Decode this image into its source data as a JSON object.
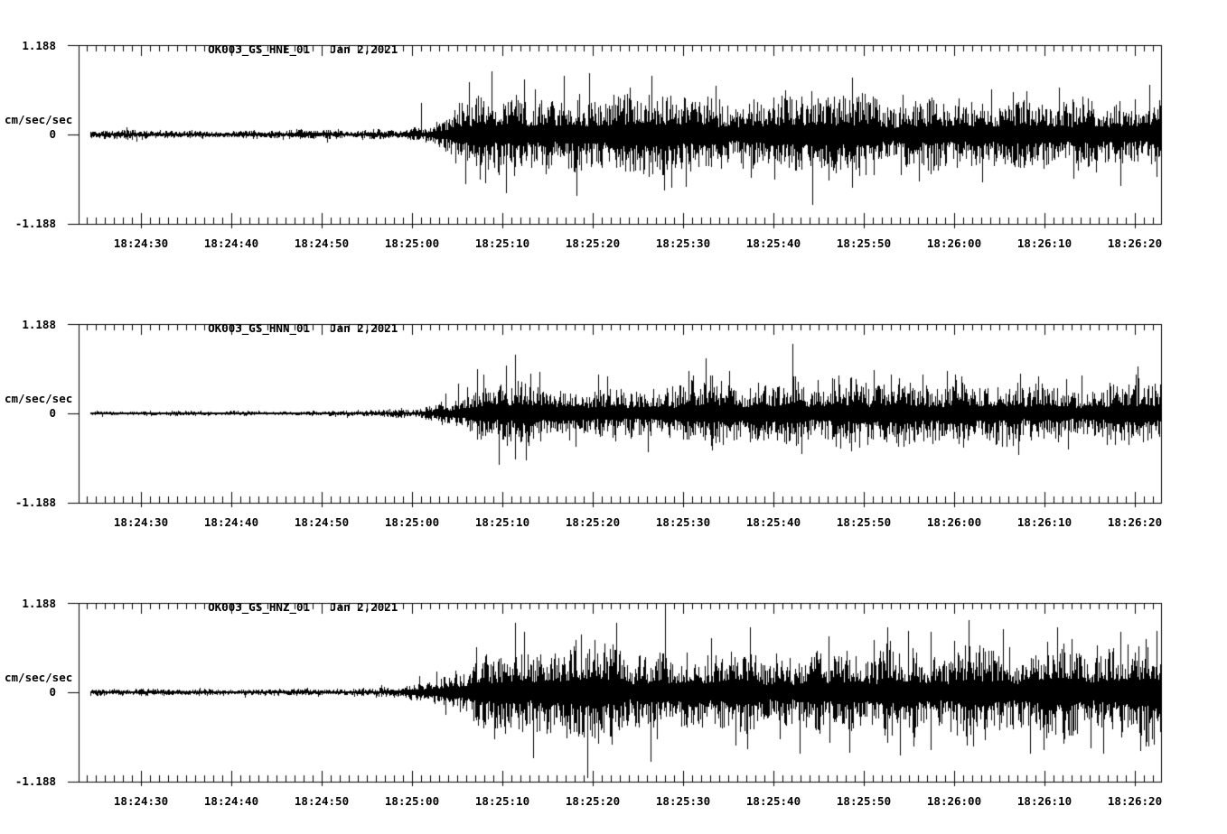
{
  "figure": {
    "background": "#ffffff",
    "ink": "#000000"
  },
  "y_axis": {
    "top_label": "1.188",
    "zero_label": "0",
    "bottom_label": "-1.188",
    "units_label": "cm/sec/sec",
    "ylim": [
      -1.188,
      1.188
    ]
  },
  "x_axis": {
    "tick_labels": [
      "18:24:30",
      "18:24:40",
      "18:24:50",
      "18:25:00",
      "18:25:10",
      "18:25:20",
      "18:25:30",
      "18:25:40",
      "18:25:50",
      "18:26:00",
      "18:26:10",
      "18:26:20"
    ],
    "axis_start_time": "18:24:23",
    "axis_end_time": "18:26:23",
    "major_tick_seconds": 10,
    "minor_tick_seconds": 1,
    "first_major_offset_seconds": 6.9,
    "total_seconds": 119.8
  },
  "chart_data": [
    {
      "type": "line",
      "title": "OK003_GS_HNE_01",
      "date": "Jan 2,2021",
      "channel": "HNE",
      "ylabel": "cm/sec/sec",
      "ylim": [
        -1.188,
        1.188
      ],
      "yticks": [
        1.188,
        0,
        -1.188
      ],
      "x_unit": "seconds after 18:24:23",
      "seed": 20210102,
      "trace_start_s": 1.3,
      "envelope": [
        [
          1.3,
          0.045
        ],
        [
          30,
          0.05
        ],
        [
          34,
          0.062
        ],
        [
          37,
          0.09
        ],
        [
          39.5,
          0.13
        ],
        [
          41,
          0.22
        ],
        [
          42,
          0.42
        ],
        [
          43.5,
          0.52
        ],
        [
          46,
          0.55
        ],
        [
          50,
          0.47
        ],
        [
          55,
          0.44
        ],
        [
          65,
          0.43
        ],
        [
          75,
          0.4
        ],
        [
          85,
          0.42
        ],
        [
          95,
          0.38
        ],
        [
          105,
          0.37
        ],
        [
          112,
          0.4
        ],
        [
          119.8,
          0.42
        ]
      ],
      "spikes": [
        [
          37.9,
          0.42
        ],
        [
          43.2,
          0.7
        ],
        [
          45.0,
          -0.65
        ],
        [
          47.3,
          -0.78
        ],
        [
          50.5,
          0.6
        ],
        [
          56.5,
          0.82
        ],
        [
          61.0,
          0.62
        ],
        [
          64.8,
          -0.74
        ],
        [
          70.5,
          0.65
        ],
        [
          77.0,
          -0.6
        ],
        [
          85.6,
          0.76
        ],
        [
          93.0,
          -0.62
        ],
        [
          101.0,
          0.6
        ],
        [
          108.5,
          0.62
        ],
        [
          115.3,
          -0.68
        ],
        [
          118.5,
          0.66
        ]
      ]
    },
    {
      "type": "line",
      "title": "OK003_GS_HNN_01",
      "date": "Jan 2,2021",
      "channel": "HNN",
      "ylabel": "cm/sec/sec",
      "ylim": [
        -1.188,
        1.188
      ],
      "yticks": [
        1.188,
        0,
        -1.188
      ],
      "x_unit": "seconds after 18:24:23",
      "seed": 18251,
      "trace_start_s": 1.3,
      "envelope": [
        [
          1.3,
          0.025
        ],
        [
          30,
          0.028
        ],
        [
          34,
          0.04
        ],
        [
          37,
          0.06
        ],
        [
          39,
          0.09
        ],
        [
          41,
          0.14
        ],
        [
          43,
          0.22
        ],
        [
          45,
          0.32
        ],
        [
          47,
          0.4
        ],
        [
          49,
          0.42
        ],
        [
          52,
          0.34
        ],
        [
          58,
          0.3
        ],
        [
          65,
          0.33
        ],
        [
          75,
          0.36
        ],
        [
          85,
          0.38
        ],
        [
          95,
          0.36
        ],
        [
          105,
          0.34
        ],
        [
          112,
          0.36
        ],
        [
          119.8,
          0.36
        ]
      ],
      "spikes": [
        [
          42.0,
          0.4
        ],
        [
          44.8,
          0.52
        ],
        [
          46.5,
          -0.68
        ],
        [
          48.3,
          0.78
        ],
        [
          49.5,
          -0.62
        ],
        [
          51.0,
          0.55
        ],
        [
          57.5,
          0.52
        ],
        [
          63.0,
          -0.52
        ],
        [
          68.0,
          0.5
        ],
        [
          72.0,
          0.56
        ],
        [
          80.0,
          -0.54
        ],
        [
          88.0,
          0.58
        ],
        [
          97.0,
          0.52
        ],
        [
          104.0,
          -0.55
        ],
        [
          111.0,
          0.5
        ],
        [
          117.0,
          0.52
        ]
      ]
    },
    {
      "type": "line",
      "title": "OK003_GS_HNZ_01",
      "date": "Jan 2,2021",
      "channel": "HNZ",
      "ylabel": "cm/sec/sec",
      "ylim": [
        -1.188,
        1.188
      ],
      "yticks": [
        1.188,
        0,
        -1.188
      ],
      "x_unit": "seconds after 18:24:23",
      "seed": 777003,
      "trace_start_s": 1.3,
      "envelope": [
        [
          1.3,
          0.035
        ],
        [
          30,
          0.04
        ],
        [
          34,
          0.05
        ],
        [
          37,
          0.08
        ],
        [
          39,
          0.13
        ],
        [
          41,
          0.2
        ],
        [
          43,
          0.32
        ],
        [
          45,
          0.42
        ],
        [
          48,
          0.5
        ],
        [
          55,
          0.47
        ],
        [
          65,
          0.5
        ],
        [
          75,
          0.48
        ],
        [
          85,
          0.5
        ],
        [
          95,
          0.52
        ],
        [
          105,
          0.5
        ],
        [
          112,
          0.53
        ],
        [
          119.8,
          0.55
        ]
      ],
      "spikes": [
        [
          44.0,
          0.6
        ],
        [
          46.0,
          -0.62
        ],
        [
          48.3,
          0.92
        ],
        [
          50.3,
          -0.88
        ],
        [
          55.0,
          0.7
        ],
        [
          59.0,
          -0.7
        ],
        [
          63.3,
          -0.92
        ],
        [
          64.9,
          1.14
        ],
        [
          70.0,
          0.72
        ],
        [
          74.0,
          -0.75
        ],
        [
          79.8,
          -0.82
        ],
        [
          83.0,
          0.75
        ],
        [
          85.3,
          -0.8
        ],
        [
          88.0,
          0.7
        ],
        [
          91.8,
          0.82
        ],
        [
          94.3,
          0.8
        ],
        [
          99.0,
          -0.72
        ],
        [
          102.3,
          0.84
        ],
        [
          105.3,
          -0.82
        ],
        [
          108.3,
          0.86
        ],
        [
          112.0,
          -0.74
        ],
        [
          115.3,
          0.8
        ],
        [
          117.5,
          -0.78
        ],
        [
          119.3,
          0.82
        ]
      ]
    }
  ]
}
